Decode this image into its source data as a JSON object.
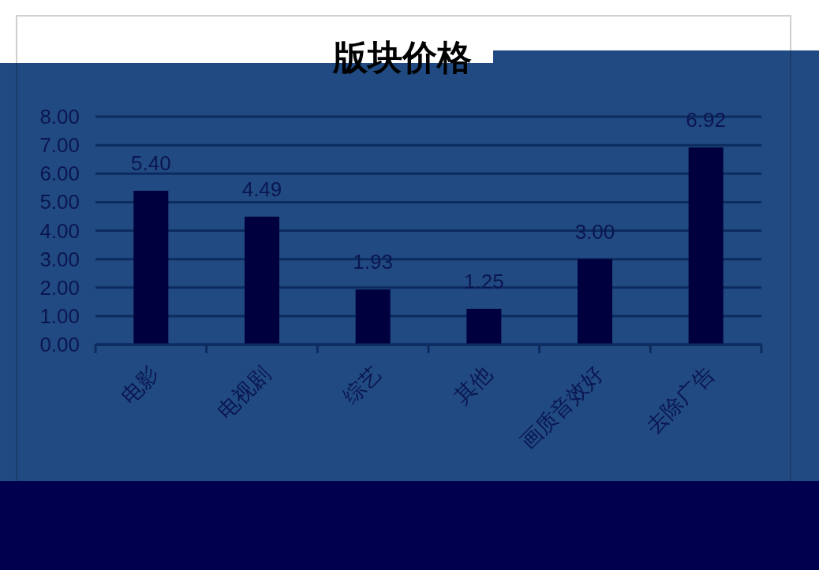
{
  "chart_data": {
    "type": "bar",
    "title": "版块价格",
    "categories": [
      "电影",
      "电视剧",
      "综艺",
      "其他",
      "画质音效好",
      "去除广告"
    ],
    "values": [
      5.4,
      4.49,
      1.93,
      1.25,
      3.0,
      6.92
    ],
    "value_labels": [
      "5.40",
      "4.49",
      "1.93",
      "1.25",
      "3.00",
      "6.92"
    ],
    "color": "#00003f",
    "ylim": [
      0,
      8
    ],
    "yticks": [
      {
        "value": 0,
        "label": "0.00"
      },
      {
        "value": 1,
        "label": "1.00"
      },
      {
        "value": 2,
        "label": "2.00"
      },
      {
        "value": 3,
        "label": "3.00"
      },
      {
        "value": 4,
        "label": "4.00"
      },
      {
        "value": 5,
        "label": "5.00"
      },
      {
        "value": 6,
        "label": "6.00"
      },
      {
        "value": 7,
        "label": "7.00"
      },
      {
        "value": 8,
        "label": "8.00"
      }
    ],
    "grid": "y"
  }
}
